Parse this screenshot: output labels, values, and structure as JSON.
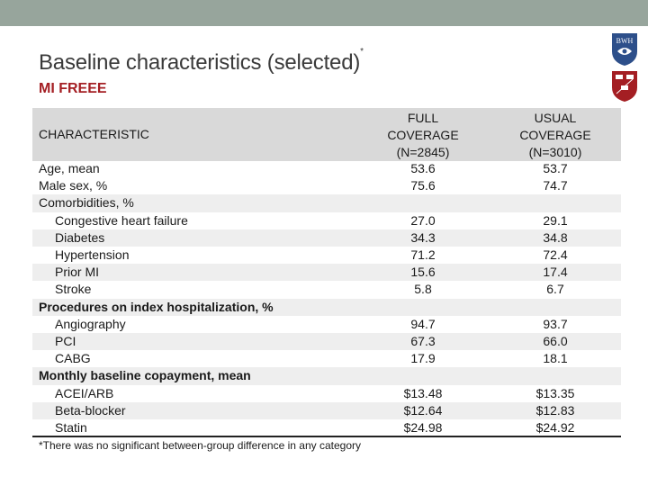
{
  "slide": {
    "title": "Baseline characteristics (selected)",
    "title_mark": "*",
    "subtitle": "MI FREEE",
    "logo_text": "BWH",
    "accent_color": "#a41e23",
    "topbar_color": "#97a59c"
  },
  "table": {
    "header": {
      "characteristic": "CHARACTERISTIC",
      "col1": [
        "FULL",
        "COVERAGE",
        "(N=2845)"
      ],
      "col2": [
        "USUAL",
        "COVERAGE",
        "(N=3010)"
      ]
    },
    "rows": [
      {
        "label": "Age, mean",
        "full": "53.6",
        "usual": "53.7"
      },
      {
        "label": "Male sex, %",
        "full": "75.6",
        "usual": "74.7"
      },
      {
        "label": "Comorbidities, %",
        "full": "",
        "usual": ""
      },
      {
        "label": "Congestive heart failure",
        "full": "27.0",
        "usual": "29.1"
      },
      {
        "label": "Diabetes",
        "full": "34.3",
        "usual": "34.8"
      },
      {
        "label": "Hypertension",
        "full": "71.2",
        "usual": "72.4"
      },
      {
        "label": "Prior MI",
        "full": "15.6",
        "usual": "17.4"
      },
      {
        "label": "Stroke",
        "full": "5.8",
        "usual": "6.7"
      },
      {
        "label": "Procedures on index hospitalization, %",
        "full": "",
        "usual": ""
      },
      {
        "label": "Angiography",
        "full": "94.7",
        "usual": "93.7"
      },
      {
        "label": "PCI",
        "full": "67.3",
        "usual": "66.0"
      },
      {
        "label": "CABG",
        "full": "17.9",
        "usual": "18.1"
      },
      {
        "label": "Monthly baseline copayment, mean",
        "full": "",
        "usual": ""
      },
      {
        "label": "ACEI/ARB",
        "full": "$13.48",
        "usual": "$13.35"
      },
      {
        "label": "Beta-blocker",
        "full": "$12.64",
        "usual": "$12.83"
      },
      {
        "label": "Statin",
        "full": "$24.98",
        "usual": "$24.92"
      }
    ]
  },
  "footnote": "*There was no significant between-group difference in any category"
}
